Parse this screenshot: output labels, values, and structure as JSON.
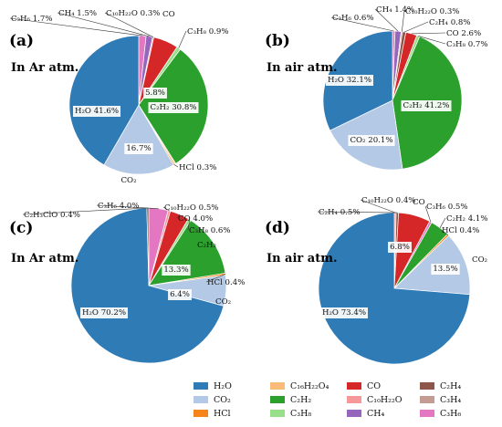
{
  "colors": {
    "H2O": "#2f7bb6",
    "CO2": "#b4c9e6",
    "HCl": "#f58518",
    "C16H22O4": "#fbbb78",
    "C2H2": "#2ca02c",
    "C3H8": "#98df8a",
    "CO": "#d62728",
    "C10H22O": "#f4989a",
    "CH4": "#9467bd",
    "C2H4": "#8c564b",
    "C3H4": "#c49c94",
    "C3H6": "#e377c2"
  },
  "legend": [
    {
      "key": "H2O",
      "label": "H₂O"
    },
    {
      "key": "C16H22O4",
      "label": "C₁₆H₂₂O₄"
    },
    {
      "key": "CO",
      "label": "CO"
    },
    {
      "key": "C2H4",
      "label": "C₂H₄"
    },
    {
      "key": "CO2",
      "label": "CO₂"
    },
    {
      "key": "C2H2",
      "label": "C₂H₂"
    },
    {
      "key": "C10H22O",
      "label": "C₁₀H₂₂O"
    },
    {
      "key": "C3H4",
      "label": "C₃H₄"
    },
    {
      "key": "HCl",
      "label": "HCl"
    },
    {
      "key": "C3H8",
      "label": "C₃H₈"
    },
    {
      "key": "CH4",
      "label": "CH₄"
    },
    {
      "key": "C3H6",
      "label": "C₃H₆"
    }
  ],
  "chart_data": [
    {
      "type": "pie",
      "panel": "(a)",
      "subtitle": "In Ar atm.",
      "slices": [
        {
          "key": "C3H6",
          "value": 1.7,
          "label": "C₃H₆ 1.7%"
        },
        {
          "key": "CH4",
          "value": 1.5,
          "label": "CH₄ 1.5%"
        },
        {
          "key": "C10H22O",
          "value": 0.3,
          "label": "C₁₀H₂₂O 0.3%"
        },
        {
          "key": "CO",
          "value": 5.8,
          "label": "5.8%",
          "top_label": "CO"
        },
        {
          "key": "C3H8",
          "value": 0.9,
          "label": "C₃H₈ 0.9%"
        },
        {
          "key": "C2H2",
          "value": 30.8,
          "label": "C₂H₂ 30.8%"
        },
        {
          "key": "C16H22O4",
          "value": 0.3,
          "label": ""
        },
        {
          "key": "HCl",
          "value": 0.3,
          "label": "HCl 0.3%"
        },
        {
          "key": "CO2",
          "value": 16.7,
          "label": "16.7%",
          "bottom_label": "CO₂"
        },
        {
          "key": "H2O",
          "value": 41.6,
          "label": "H₂O 41.6%"
        }
      ]
    },
    {
      "type": "pie",
      "panel": "(b)",
      "subtitle": "In air atm.",
      "slices": [
        {
          "key": "C3H6",
          "value": 0.6,
          "label": "C₃H₆ 0.6%"
        },
        {
          "key": "CH4",
          "value": 1.4,
          "label": "CH₄ 1.4%"
        },
        {
          "key": "C10H22O",
          "value": 0.3,
          "label": "C₁₀H₂₂O 0.3%"
        },
        {
          "key": "C2H4",
          "value": 0.8,
          "label": "C₂H₄ 0.8%"
        },
        {
          "key": "CO",
          "value": 2.6,
          "label": "CO 2.6%"
        },
        {
          "key": "C3H8",
          "value": 0.7,
          "label": "C₃H₈ 0.7%"
        },
        {
          "key": "C2H2",
          "value": 41.2,
          "label": "C₂H₂ 41.2%"
        },
        {
          "key": "CO2",
          "value": 20.1,
          "label": "CO₂ 20.1%"
        },
        {
          "key": "H2O",
          "value": 32.1,
          "label": "H₂O 32.1%"
        }
      ]
    },
    {
      "type": "pie",
      "panel": "(c)",
      "subtitle": "In Ar atm.",
      "slices": [
        {
          "key": "C3H6",
          "value": 4.0,
          "label": "C₃H₆ 4.0%"
        },
        {
          "key": "C10H22O",
          "value": 0.5,
          "label": "C₁₀H₂₂O 0.5%"
        },
        {
          "key": "CO",
          "value": 4.0,
          "label": "CO 4.0%"
        },
        {
          "key": "C3H8",
          "value": 0.6,
          "label": "C₃H₈ 0.6%"
        },
        {
          "key": "C2H2",
          "value": 13.3,
          "label": "13.3%",
          "top_label": "C₂H₂"
        },
        {
          "key": "HCl",
          "value": 0.4,
          "label": "HCl 0.4%"
        },
        {
          "key": "CO2",
          "value": 6.4,
          "label": "6.4%",
          "side_label": "CO₂"
        },
        {
          "key": "H2O",
          "value": 70.2,
          "label": "H₂O 70.2%"
        },
        {
          "key": "C2H4",
          "value": 0.4,
          "label": "C₂H₃ClO 0.4%"
        }
      ]
    },
    {
      "type": "pie",
      "panel": "(d)",
      "subtitle": "In air atm.",
      "slices": [
        {
          "key": "C10H22O",
          "value": 0.4,
          "label": "C₁₀H₂₂O 0.4%"
        },
        {
          "key": "C2H4",
          "value": 0.5,
          "label": "C₂H₄ 0.5%"
        },
        {
          "key": "CO",
          "value": 6.8,
          "label": "6.8%",
          "top_label": "CO"
        },
        {
          "key": "C3H6",
          "value": 0.5,
          "label": "C₃H₆ 0.5%"
        },
        {
          "key": "C2H2",
          "value": 4.1,
          "label": "C₂H₂ 4.1%"
        },
        {
          "key": "HCl",
          "value": 0.4,
          "label": "HCl 0.4%"
        },
        {
          "key": "CO2",
          "value": 13.5,
          "label": "13.5%",
          "side_label": "CO₂"
        },
        {
          "key": "H2O",
          "value": 73.4,
          "label": "H₂O 73.4%"
        }
      ]
    }
  ]
}
